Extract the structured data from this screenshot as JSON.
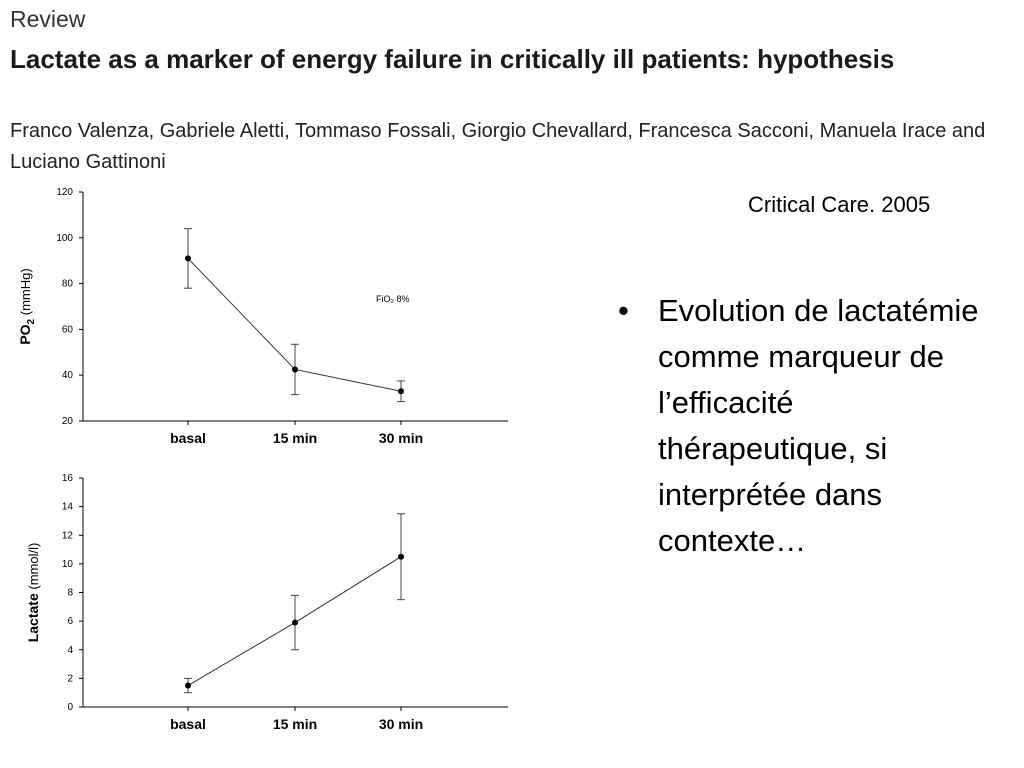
{
  "header": {
    "section": "Review",
    "title": "Lactate as a marker of energy failure in critically ill patients: hypothesis",
    "authors": "Franco Valenza, Gabriele Aletti, Tommaso Fossali, Giorgio Chevallard, Francesca Sacconi, Manuela Irace and Luciano Gattinoni"
  },
  "journal": "Critical Care. 2005",
  "bullet": {
    "symbol": "•",
    "text": "Evolution de lactatémie comme marqueur de l’efficacité thérapeutique, si interprétée dans contexte…"
  },
  "chart_data": [
    {
      "type": "line",
      "ylabel_main": "PO",
      "ylabel_sub": "2",
      "ylabel_unit": " (mmHg)",
      "categories": [
        "basal",
        "15 min",
        "30 min"
      ],
      "values": [
        91,
        42.5,
        33
      ],
      "errors": [
        13,
        11,
        4.5
      ],
      "ylim": [
        20,
        120
      ],
      "yticks": [
        20,
        40,
        60,
        80,
        100,
        120
      ],
      "annotation": "FiO₂ 8%",
      "grid": false
    },
    {
      "type": "line",
      "ylabel_main": "Lactate",
      "ylabel_unit": " (mmol/l)",
      "categories": [
        "basal",
        "15 min",
        "30 min"
      ],
      "values": [
        1.5,
        5.9,
        10.5
      ],
      "errors": [
        0.5,
        1.9,
        3
      ],
      "ylim": [
        0,
        16
      ],
      "yticks": [
        0,
        2,
        4,
        6,
        8,
        10,
        12,
        14,
        16
      ],
      "grid": false
    }
  ]
}
